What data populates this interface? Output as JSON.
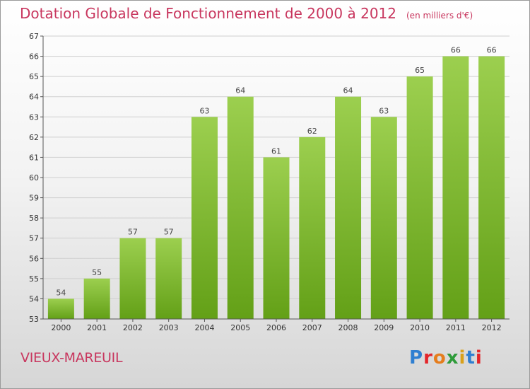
{
  "title": "Dotation Globale de Fonctionnement de 2000 à 2012",
  "unit_note": "(en milliers d'€)",
  "commune": "VIEUX-MAREUIL",
  "logo": {
    "text": "Proxiti",
    "colors": [
      "#2f7fd1",
      "#e3262b",
      "#e57d1d",
      "#2e9b3a",
      "#d9a11b",
      "#2f7fd1",
      "#e3262b"
    ]
  },
  "colors": {
    "bar_top": "#9ccf4f",
    "bar_bottom": "#63a017",
    "title": "#c8365e",
    "grid": "#cfcfcf"
  },
  "chart_data": {
    "type": "bar",
    "title": "Dotation Globale de Fonctionnement de 2000 à 2012",
    "xlabel": "",
    "ylabel": "",
    "categories": [
      "2000",
      "2001",
      "2002",
      "2003",
      "2004",
      "2005",
      "2006",
      "2007",
      "2008",
      "2009",
      "2010",
      "2011",
      "2012"
    ],
    "values": [
      54,
      55,
      57,
      57,
      63,
      64,
      61,
      62,
      64,
      63,
      65,
      66,
      66
    ],
    "ylim": [
      53,
      67
    ],
    "yticks": [
      53,
      54,
      55,
      56,
      57,
      58,
      59,
      60,
      61,
      62,
      63,
      64,
      65,
      66,
      67
    ],
    "grid": true
  }
}
